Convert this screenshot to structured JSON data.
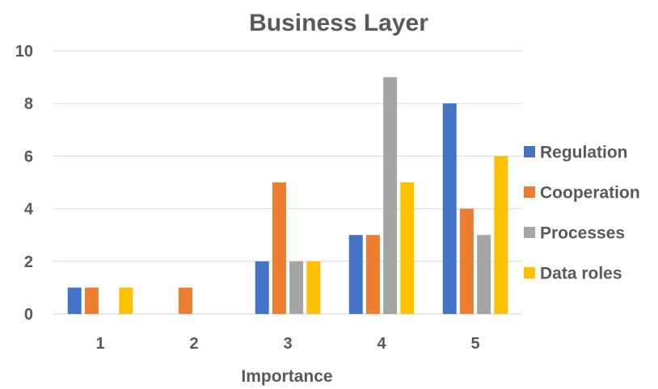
{
  "chart_data": {
    "type": "bar",
    "title": "Business Layer",
    "xlabel": "Importance",
    "ylabel": "",
    "categories": [
      "1",
      "2",
      "3",
      "4",
      "5"
    ],
    "ylim": [
      0,
      10
    ],
    "yticks": [
      "0",
      "2",
      "4",
      "6",
      "8",
      "10"
    ],
    "grid": true,
    "legend_position": "right",
    "series": [
      {
        "name": "Regulation",
        "color": "#4472C4",
        "values": [
          1,
          0,
          2,
          3,
          8
        ]
      },
      {
        "name": "Cooperation",
        "color": "#ED7D31",
        "values": [
          1,
          1,
          5,
          3,
          4
        ]
      },
      {
        "name": "Processes",
        "color": "#A5A5A5",
        "values": [
          0,
          0,
          2,
          9,
          3
        ]
      },
      {
        "name": "Data roles",
        "color": "#FFC000",
        "values": [
          1,
          0,
          2,
          5,
          6
        ]
      }
    ]
  }
}
